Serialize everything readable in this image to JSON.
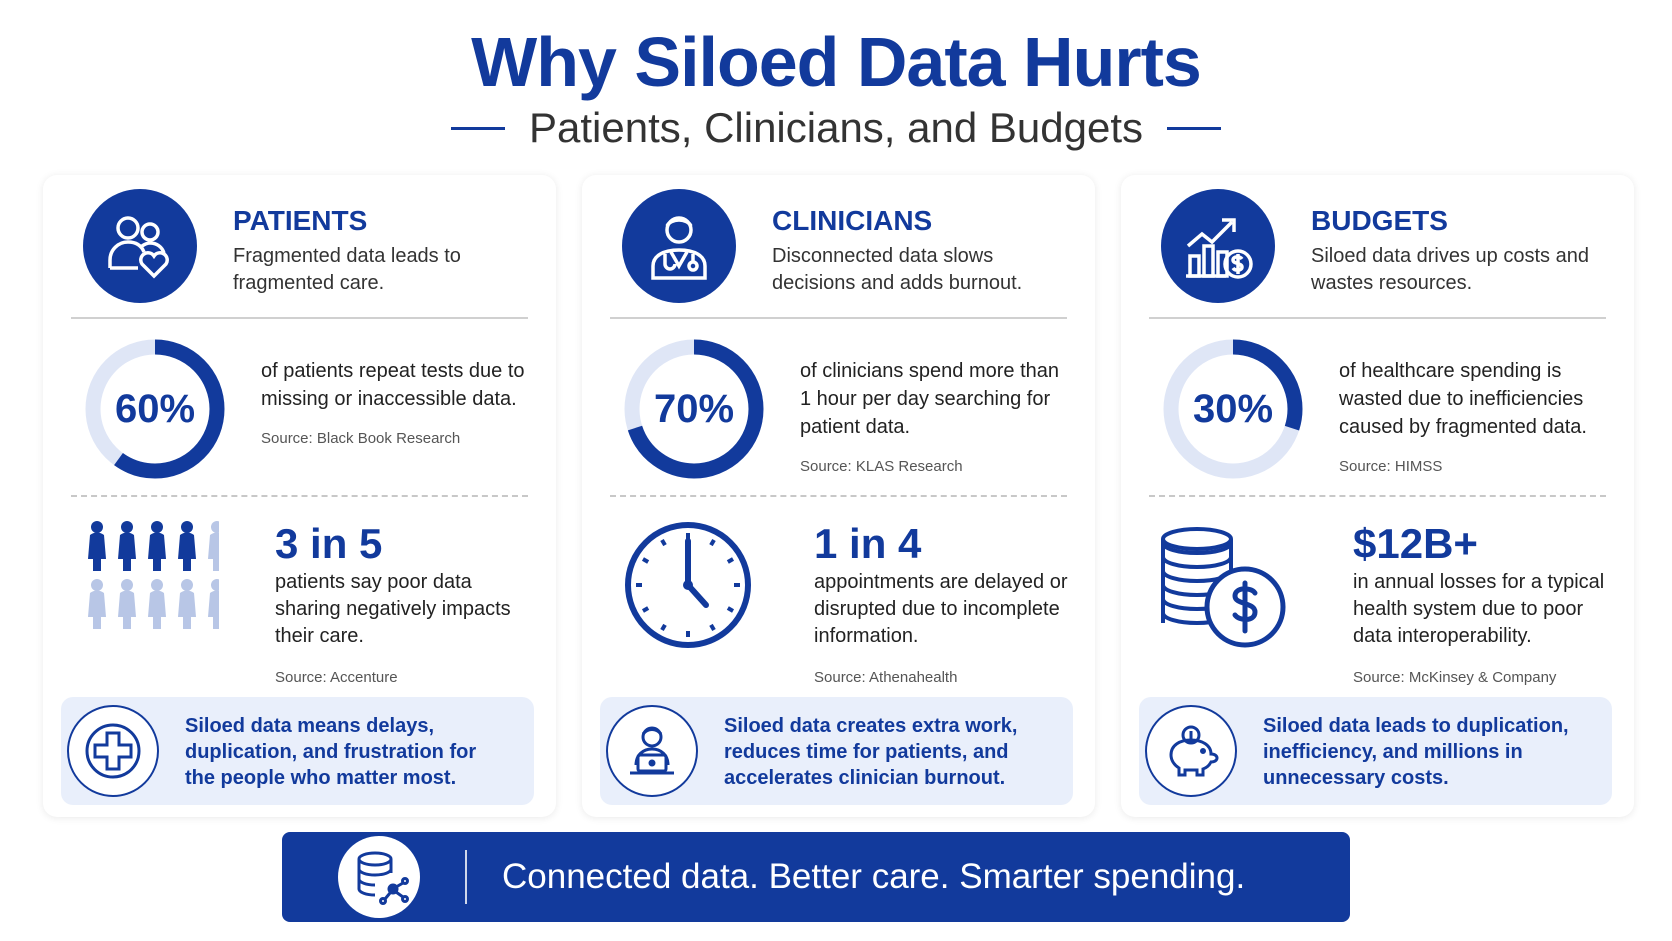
{
  "title": "Why Siloed Data Hurts",
  "subtitle": "Patients, Clinicians, and Budgets",
  "cards": [
    {
      "heading": "PATIENTS",
      "description": "Fragmented data leads to fragmented care.",
      "stat": {
        "value": 60,
        "label": "60%"
      },
      "stat_text": "of patients repeat tests due to missing or inaccessible data.",
      "stat_source": "Source: Black Book Research",
      "ratio": "3 in 5",
      "ratio_text": "patients say poor data sharing negatively impacts their care.",
      "ratio_source": "Source: Accenture",
      "callout": "Siloed data means delays, duplication, and frustration for the people who matter most."
    },
    {
      "heading": "CLINICIANS",
      "description": "Disconnected data slows decisions and adds burnout.",
      "stat": {
        "value": 70,
        "label": "70%"
      },
      "stat_text": "of clinicians spend more than 1 hour per day searching for patient data.",
      "stat_source": "Source: KLAS Research",
      "ratio": "1 in 4",
      "ratio_text": "appointments are delayed or disrupted due to incomplete information.",
      "ratio_source": "Source: Athenahealth",
      "callout": "Siloed data creates extra work, reduces time for patients, and accelerates clinician burnout."
    },
    {
      "heading": "BUDGETS",
      "description": "Siloed data drives up costs and wastes resources.",
      "stat": {
        "value": 30,
        "label": "30%"
      },
      "stat_text": "of healthcare spending is wasted due to inefficiencies caused by fragmented data.",
      "stat_source": "Source: HIMSS",
      "ratio": "$12B+",
      "ratio_text": "in annual losses for a typical health system due to poor data interoperability.",
      "ratio_source": "Source: McKinsey & Company",
      "callout": "Siloed data leads to duplication, inefficiency, and millions in unnecessary costs."
    }
  ],
  "footer": "Connected data. Better care. Smarter spending."
}
